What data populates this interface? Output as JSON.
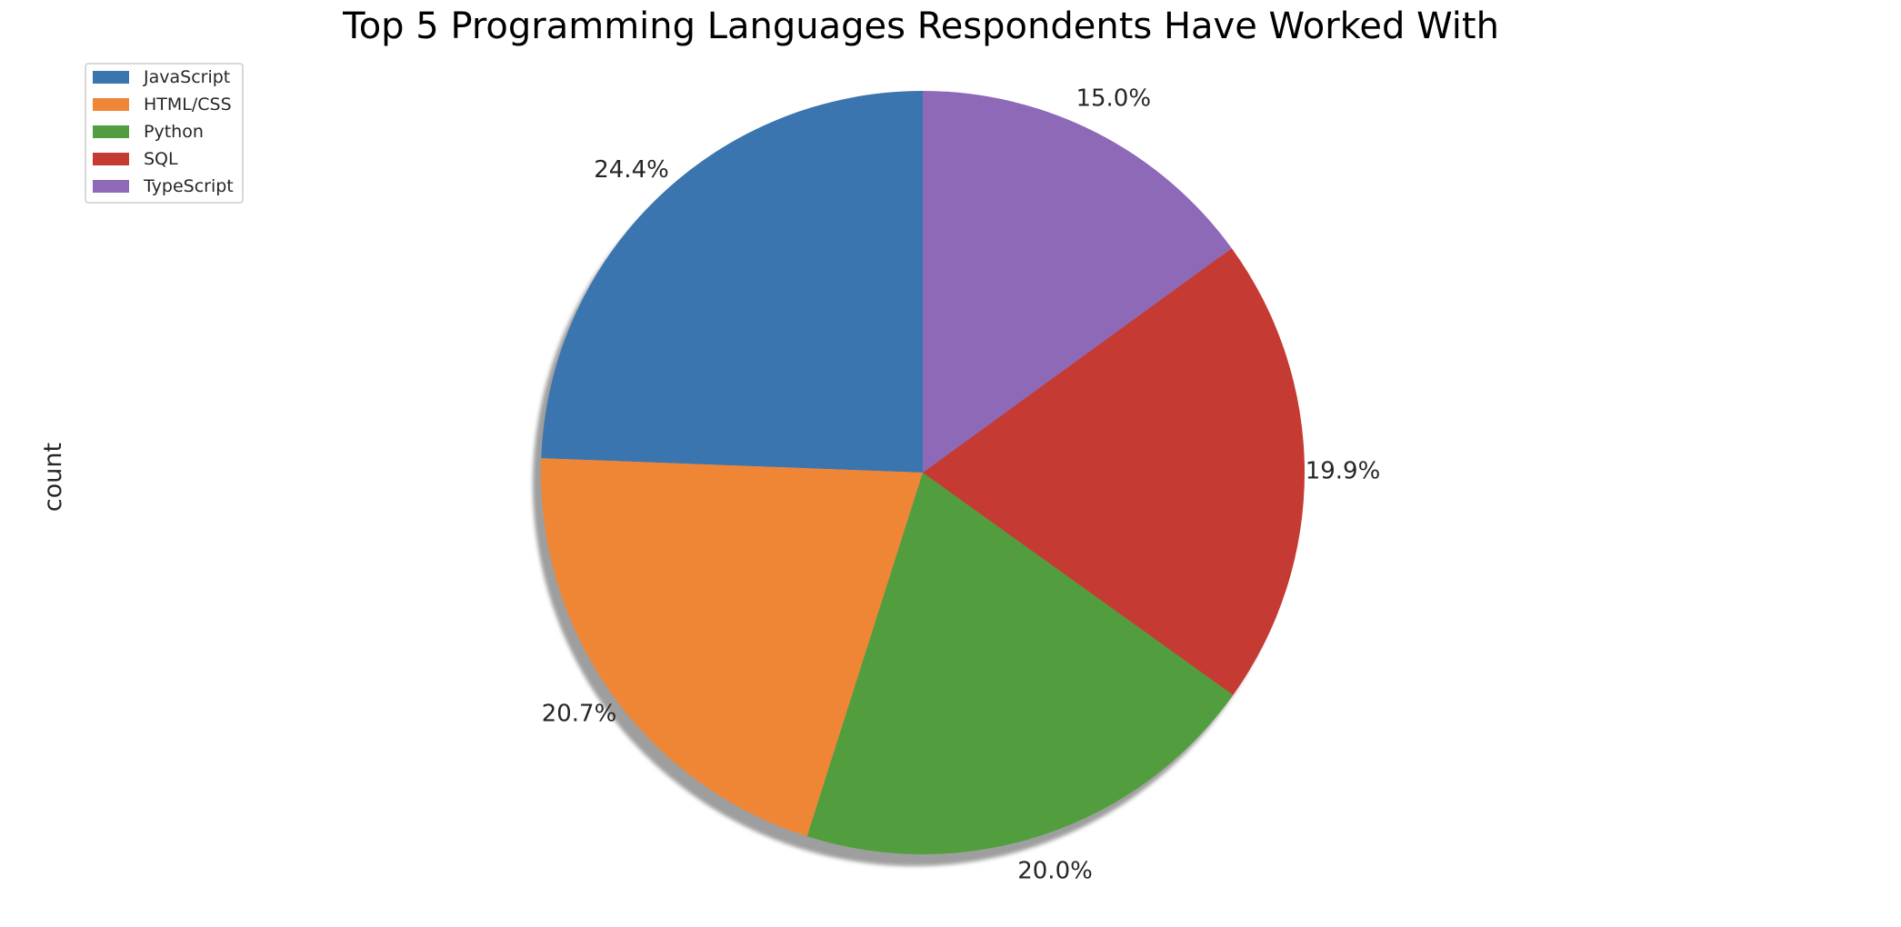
{
  "chart_data": {
    "type": "pie",
    "title": "Top 5 Programming Languages Respondents Have Worked With",
    "ylabel": "count",
    "categories": [
      "JavaScript",
      "HTML/CSS",
      "Python",
      "SQL",
      "TypeScript"
    ],
    "values": [
      24.4,
      20.7,
      20.0,
      19.9,
      15.0
    ],
    "labels": [
      "24.4%",
      "20.7%",
      "20.0%",
      "19.9%",
      "15.0%"
    ],
    "colors": [
      "#3a75af",
      "#ef8636",
      "#529e3e",
      "#c53a32",
      "#8d69b8"
    ],
    "start_angle_deg": 90,
    "direction": "counterclockwise",
    "shadow": true,
    "legend": {
      "placement": "top-left",
      "entries": [
        "JavaScript",
        "HTML/CSS",
        "Python",
        "SQL",
        "TypeScript"
      ]
    }
  }
}
